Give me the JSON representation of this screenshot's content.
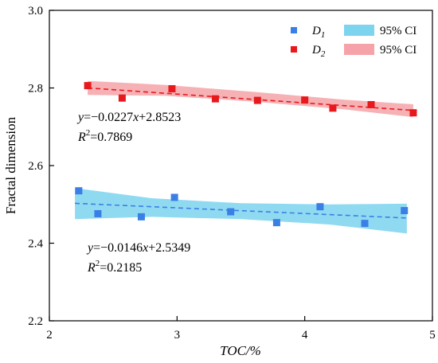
{
  "chart_data": {
    "type": "scatter",
    "xlabel": "TOC/%",
    "ylabel": "Fractal dimension",
    "xlim": [
      2,
      5
    ],
    "ylim": [
      2.2,
      3.0
    ],
    "xticks": [
      "2",
      "3",
      "4",
      "5"
    ],
    "yticks": [
      "2.2",
      "2.4",
      "2.6",
      "2.8",
      "3.0"
    ],
    "grid": false,
    "legend_position": "top-right",
    "series": [
      {
        "name": "D1",
        "name_main": "D",
        "name_sub": "1",
        "color": "#3a7fe6",
        "ci_color": "#7dd4ef",
        "ci_label": "95% CI",
        "x": [
          2.23,
          2.38,
          2.72,
          2.98,
          3.42,
          3.78,
          4.12,
          4.47,
          4.78
        ],
        "y": [
          2.535,
          2.476,
          2.468,
          2.518,
          2.481,
          2.453,
          2.494,
          2.451,
          2.484
        ],
        "fit": {
          "slope": -0.0146,
          "intercept": 2.5349,
          "x_range": [
            2.2,
            4.8
          ]
        },
        "ci_band": {
          "x": [
            2.2,
            2.8,
            3.5,
            4.2,
            4.8
          ],
          "lower": [
            2.462,
            2.468,
            2.462,
            2.448,
            2.425
          ],
          "upper": [
            2.542,
            2.516,
            2.503,
            2.5,
            2.502
          ]
        },
        "equation": {
          "lhs": "y",
          "rest": "=−0.0146",
          "var": "x",
          "tail": "+2.5349"
        },
        "r2": {
          "label": "R",
          "power": "2",
          "value": "=0.2185"
        }
      },
      {
        "name": "D2",
        "name_main": "D",
        "name_sub": "2",
        "color": "#e8191c",
        "ci_color": "#f5a3a8",
        "ci_label": "95% CI",
        "x": [
          2.3,
          2.57,
          2.96,
          3.3,
          3.63,
          4.0,
          4.22,
          4.52,
          4.85
        ],
        "y": [
          2.806,
          2.774,
          2.798,
          2.772,
          2.768,
          2.769,
          2.748,
          2.757,
          2.736
        ],
        "fit": {
          "slope": -0.0227,
          "intercept": 2.8523,
          "x_range": [
            2.3,
            4.85
          ]
        },
        "ci_band": {
          "x": [
            2.3,
            2.9,
            3.6,
            4.3,
            4.85
          ],
          "lower": [
            2.782,
            2.78,
            2.765,
            2.745,
            2.725
          ],
          "upper": [
            2.818,
            2.808,
            2.79,
            2.77,
            2.758
          ]
        },
        "equation": {
          "lhs": "y",
          "rest": "=−0.0227",
          "var": "x",
          "tail": "+2.8523"
        },
        "r2": {
          "label": "R",
          "power": "2",
          "value": "=0.7869"
        }
      }
    ]
  }
}
